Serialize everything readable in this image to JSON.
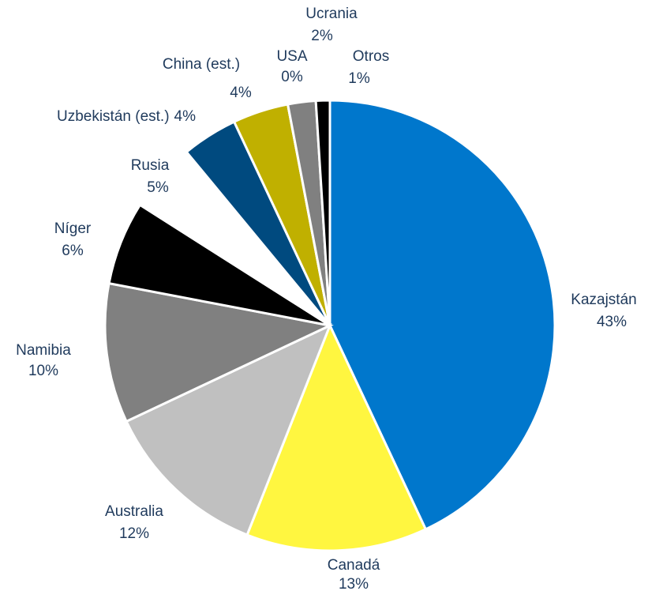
{
  "chart_data": {
    "type": "pie",
    "categories": [
      "Kazajstán",
      "Canadá",
      "Australia",
      "Namibia",
      "Níger",
      "Rusia",
      "Uzbekistán (est.)",
      "China (est.)",
      "USA",
      "Ucrania",
      "Otros"
    ],
    "values": [
      43,
      13,
      12,
      10,
      6,
      5,
      4,
      4,
      0,
      2,
      1
    ],
    "value_labels": [
      "43%",
      "13%",
      "12%",
      "10%",
      "6%",
      "5%",
      "4%",
      "4%",
      "0%",
      "2%",
      "1%"
    ],
    "colors": [
      "#0077cc",
      "#fff640",
      "#c0c0c0",
      "#808080",
      "#000000",
      "#ffffff",
      "#004a7f",
      "#c0b000",
      "#a0a0a0",
      "#808080",
      "#000000"
    ]
  }
}
